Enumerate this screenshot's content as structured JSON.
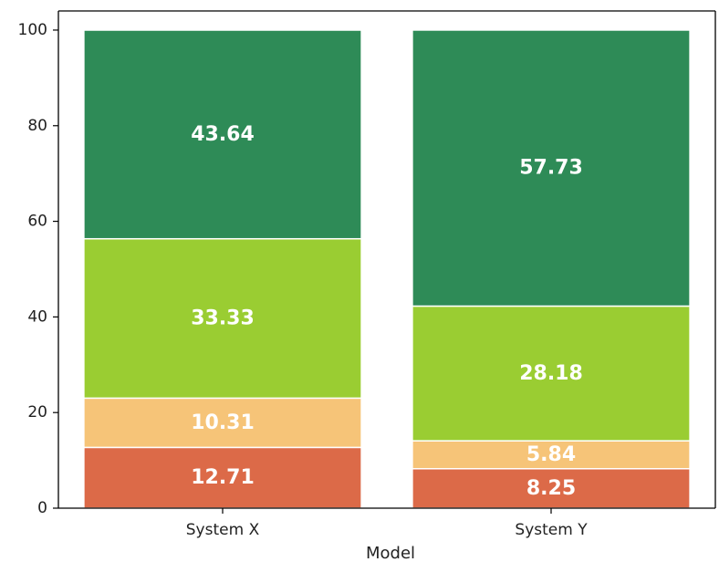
{
  "chart_data": {
    "type": "bar",
    "stacked": true,
    "title": "",
    "xlabel": "Model",
    "ylabel": "",
    "ylim": [
      0,
      104
    ],
    "yticks": [
      0,
      20,
      40,
      60,
      80,
      100
    ],
    "categories": [
      "System X",
      "System Y"
    ],
    "series": [
      {
        "color": "#dc6a48",
        "values": [
          12.71,
          8.25
        ]
      },
      {
        "color": "#f6c478",
        "values": [
          10.31,
          5.84
        ]
      },
      {
        "color": "#9acd32",
        "values": [
          33.33,
          28.18
        ]
      },
      {
        "color": "#2e8b57",
        "values": [
          43.64,
          57.73
        ]
      }
    ],
    "data_labels": [
      [
        "12.71",
        "8.25"
      ],
      [
        "10.31",
        "5.84"
      ],
      [
        "33.33",
        "28.18"
      ],
      [
        "43.64",
        "57.73"
      ]
    ],
    "grid": false,
    "legend": "none"
  }
}
